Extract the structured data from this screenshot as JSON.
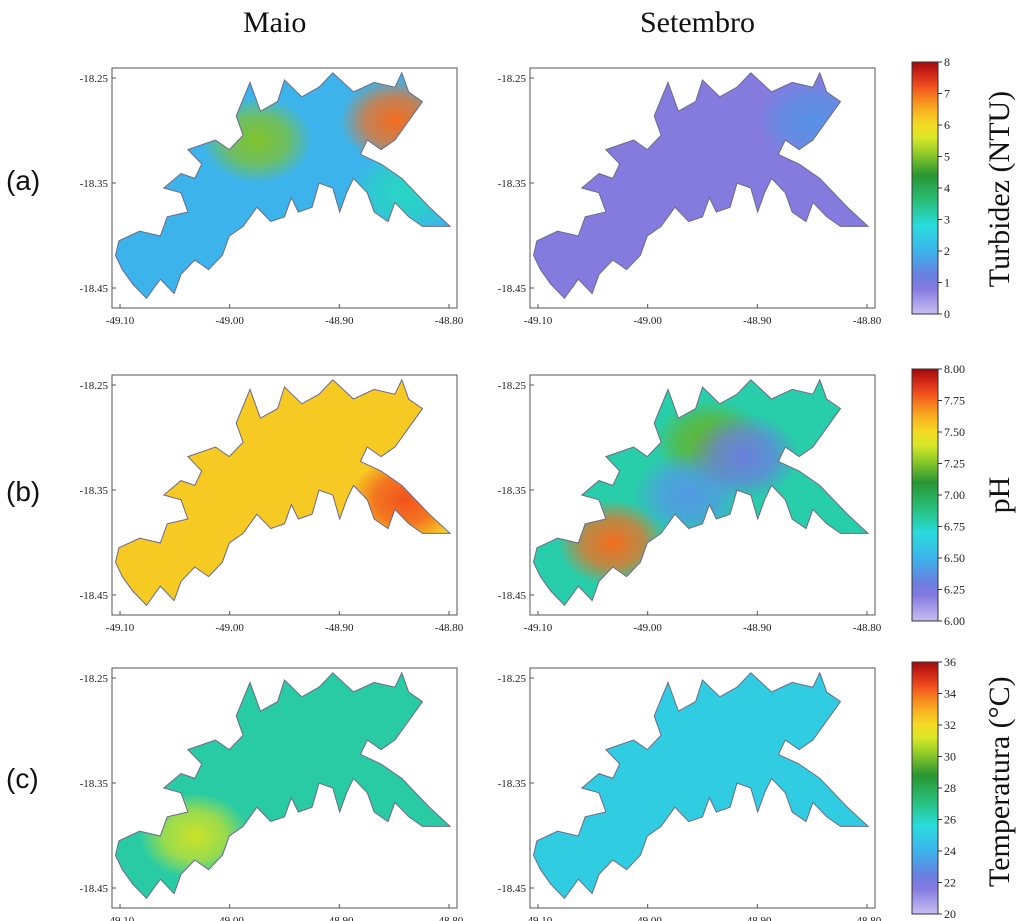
{
  "columns": [
    "Maio",
    "Setembro"
  ],
  "rows": [
    {
      "label": "(a)",
      "variable": "Turbidez (NTU)",
      "colorbar_ticks": [
        "0",
        "1",
        "2",
        "3",
        "4",
        "5",
        "6",
        "7",
        "8"
      ],
      "range": [
        0,
        8
      ]
    },
    {
      "label": "(b)",
      "variable": "pH",
      "colorbar_ticks": [
        "6.00",
        "6.25",
        "6.50",
        "6.75",
        "7.00",
        "7.25",
        "7.50",
        "7.75",
        "8.00"
      ],
      "range": [
        6.0,
        8.0
      ]
    },
    {
      "label": "(c)",
      "variable": "Temperatura (°C)",
      "colorbar_ticks": [
        "20",
        "22",
        "24",
        "26",
        "28",
        "30",
        "32",
        "34",
        "36"
      ],
      "range": [
        20,
        36
      ]
    }
  ],
  "axes": {
    "x_ticks": [
      "-49.10",
      "-49.00",
      "-48.90",
      "-48.80"
    ],
    "y_ticks": [
      "-18.25",
      "-18.35",
      "-18.45"
    ]
  },
  "map_values": {
    "a_maio": {
      "background": 2.0,
      "hotspots": [
        {
          "value": 7.0,
          "at": "northeast arm"
        },
        {
          "value": 5.0,
          "at": "center-north"
        },
        {
          "value": 3.0,
          "at": "east arm"
        }
      ]
    },
    "a_set": {
      "background": 0.8,
      "hotspots": [
        {
          "value": 1.5,
          "at": "northeast arm"
        }
      ]
    },
    "b_maio": {
      "background": 7.55,
      "hotspots": [
        {
          "value": 7.8,
          "at": "east arm"
        }
      ]
    },
    "b_set": {
      "background": 6.8,
      "hotspots": [
        {
          "value": 7.75,
          "at": "southwest arm"
        },
        {
          "value": 7.2,
          "at": "north-central"
        },
        {
          "value": 6.4,
          "at": "center"
        },
        {
          "value": 6.3,
          "at": "east-central"
        }
      ]
    },
    "c_maio": {
      "background": 26.5,
      "hotspots": [
        {
          "value": 31,
          "at": "southwest arm"
        }
      ]
    },
    "c_set": {
      "background": 25.0,
      "hotspots": []
    }
  }
}
